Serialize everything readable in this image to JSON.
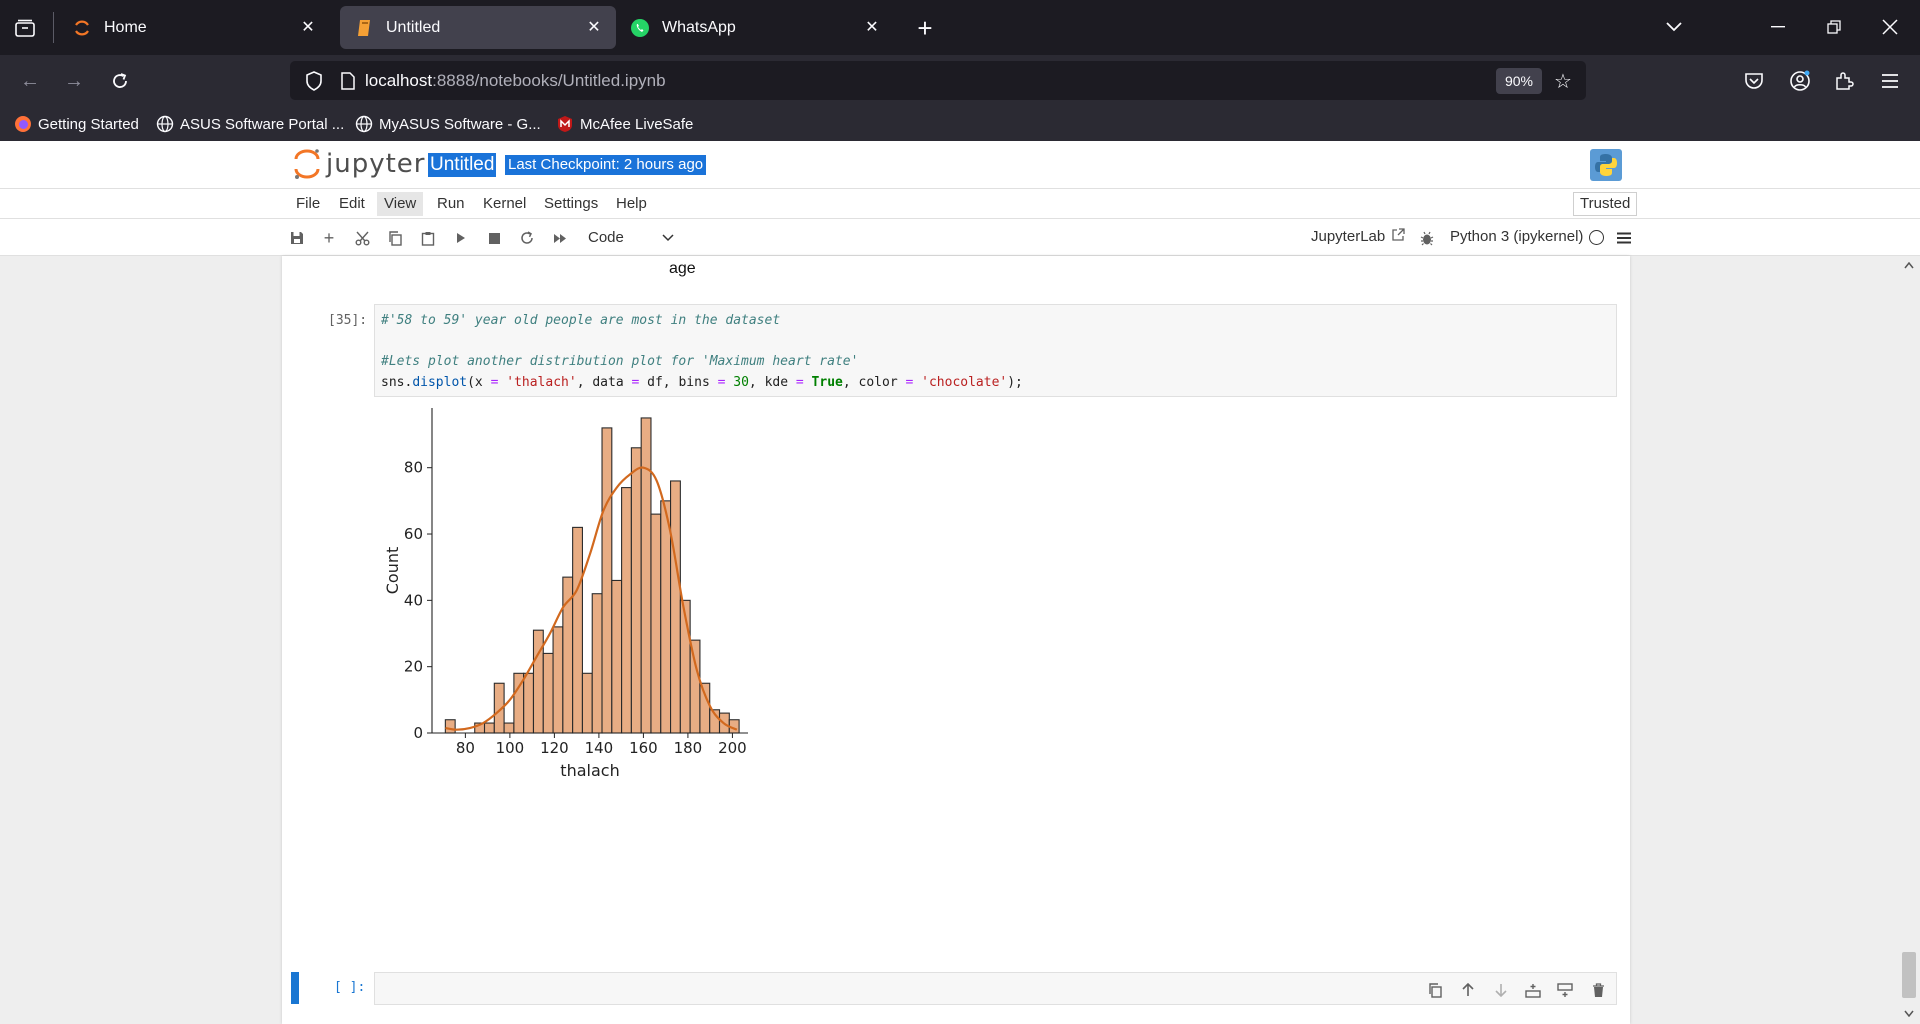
{
  "browser": {
    "tabs": [
      {
        "title": "Home",
        "icon": "jupyter-icon"
      },
      {
        "title": "Untitled",
        "icon": "notebook-icon",
        "active": true
      },
      {
        "title": "WhatsApp",
        "icon": "whatsapp-icon"
      }
    ],
    "url_host": "localhost",
    "url_rest": ":8888/notebooks/Untitled.ipynb",
    "zoom": "90%",
    "bookmarks": [
      {
        "label": "Getting Started",
        "icon": "firefox-icon"
      },
      {
        "label": "ASUS Software Portal ...",
        "icon": "globe-icon"
      },
      {
        "label": "MyASUS Software - G...",
        "icon": "globe-icon"
      },
      {
        "label": "McAfee LiveSafe",
        "icon": "mcafee-icon"
      }
    ]
  },
  "jupyter": {
    "logo_text": "jupyter",
    "notebook_title": "Untitled",
    "checkpoint": "Last Checkpoint: 2 hours ago",
    "menus": [
      "File",
      "Edit",
      "View",
      "Run",
      "Kernel",
      "Settings",
      "Help"
    ],
    "trusted": "Trusted",
    "cell_type": "Code",
    "jupyterlab_link": "JupyterLab",
    "kernel": "Python 3 (ipykernel)"
  },
  "notebook": {
    "prev_output_label": "age",
    "cell_prompt": "[35]:",
    "code_lines": [
      "#'58 to 59' year old people are most in the dataset",
      "",
      "#Lets plot another distribution plot for 'Maximum heart rate'",
      "sns.displot(x = 'thalach', data = df, bins = 30, kde = True, color = 'chocolate');"
    ],
    "empty_prompt": "[ ]:"
  },
  "colors": {
    "bar_fill": "#e8ad84",
    "bar_edge": "#2b2b2b",
    "kde_line": "#d2691e",
    "selection": "#1a73d9",
    "active_cell": "#1976d2"
  },
  "chart_data": {
    "type": "bar",
    "title": "",
    "xlabel": "thalach",
    "ylabel": "Count",
    "xlim": [
      65,
      207
    ],
    "ylim": [
      0,
      98
    ],
    "xticks": [
      80,
      100,
      120,
      140,
      160,
      180,
      200
    ],
    "yticks": [
      0,
      20,
      40,
      60,
      80
    ],
    "bin_start": 71,
    "bin_width": 4.4,
    "values": [
      4,
      0,
      0,
      3,
      3,
      15,
      3,
      18,
      18,
      31,
      24,
      32,
      47,
      62,
      18,
      42,
      92,
      46,
      74,
      86,
      95,
      66,
      70,
      76,
      40,
      28,
      15,
      7,
      6,
      4
    ],
    "kde": {
      "x": [
        71,
        76,
        82,
        88,
        94,
        100,
        106,
        112,
        118,
        124,
        130,
        136,
        142,
        148,
        154,
        160,
        166,
        172,
        178,
        184,
        190,
        196,
        202
      ],
      "y": [
        1.5,
        1,
        1.5,
        3,
        6,
        10,
        16,
        23,
        30,
        38,
        43,
        54,
        67,
        74,
        78,
        80,
        76,
        61,
        38,
        19,
        8,
        3,
        1
      ]
    }
  }
}
